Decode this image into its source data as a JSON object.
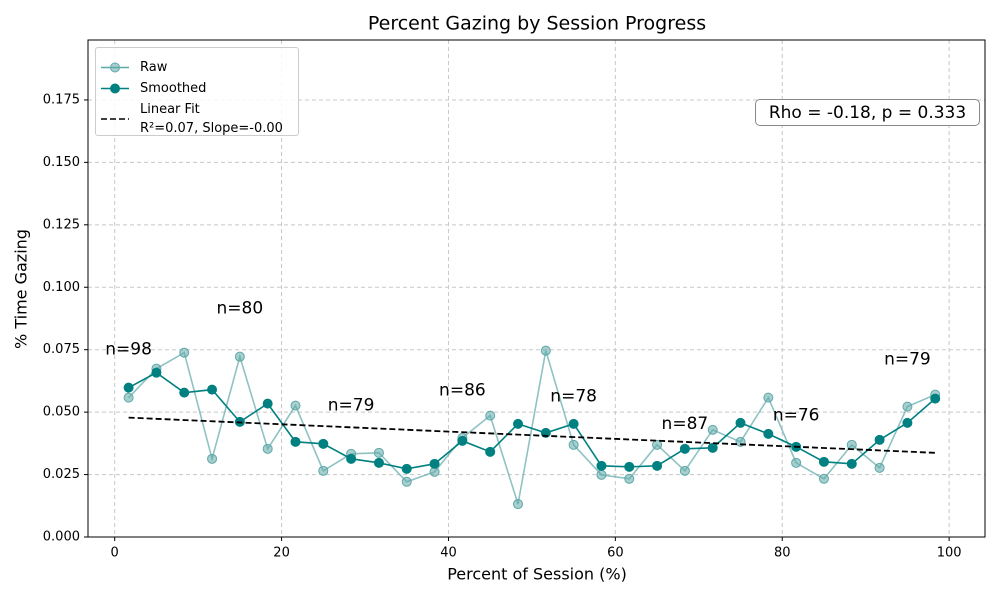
{
  "chart_data": {
    "type": "line",
    "title": "Percent Gazing by Session Progress",
    "xlabel": "Percent of Session (%)",
    "ylabel": "% Time Gazing",
    "x": [
      1.667,
      5,
      8.333,
      11.667,
      15,
      18.333,
      21.667,
      25,
      28.333,
      31.667,
      35,
      38.333,
      41.667,
      45,
      48.333,
      51.667,
      55,
      58.333,
      61.667,
      65,
      68.333,
      71.667,
      75,
      78.333,
      81.667,
      85,
      88.333,
      91.667,
      95,
      98.333
    ],
    "series": [
      {
        "name": "Raw",
        "color": "#5fa8a8",
        "marker": true,
        "values": [
          0.0558,
          0.0674,
          0.0738,
          0.0313,
          0.0722,
          0.0353,
          0.0526,
          0.0265,
          0.0333,
          0.0337,
          0.0221,
          0.0261,
          0.0397,
          0.0486,
          0.0132,
          0.0746,
          0.0369,
          0.0249,
          0.0233,
          0.0369,
          0.0265,
          0.0429,
          0.0381,
          0.0558,
          0.0297,
          0.0233,
          0.0369,
          0.0277,
          0.0522,
          0.057
        ]
      },
      {
        "name": "Smoothed",
        "color": "#008080",
        "marker": true,
        "values": [
          0.0598,
          0.0658,
          0.0578,
          0.059,
          0.0461,
          0.0534,
          0.0381,
          0.0373,
          0.0313,
          0.0297,
          0.0273,
          0.0293,
          0.0385,
          0.0341,
          0.0453,
          0.0417,
          0.0453,
          0.0285,
          0.0281,
          0.0285,
          0.0353,
          0.0357,
          0.0457,
          0.0413,
          0.0361,
          0.0301,
          0.0293,
          0.0389,
          0.0457,
          0.0554
        ]
      },
      {
        "name": "Linear Fit\nR²=0.07, Slope=-0.00",
        "color": "#000000",
        "dashed": true,
        "x": [
          1.667,
          98.333
        ],
        "values": [
          0.0478,
          0.0337
        ]
      }
    ],
    "annotations": [
      {
        "text": "n=98",
        "x": 1.667,
        "y": 0.075
      },
      {
        "text": "n=80",
        "x": 15,
        "y": 0.0915
      },
      {
        "text": "n=79",
        "x": 28.333,
        "y": 0.0526
      },
      {
        "text": "n=86",
        "x": 41.667,
        "y": 0.0586
      },
      {
        "text": "n=78",
        "x": 55,
        "y": 0.0562
      },
      {
        "text": "n=87",
        "x": 68.333,
        "y": 0.0453
      },
      {
        "text": "n=76",
        "x": 81.667,
        "y": 0.0486
      },
      {
        "text": "n=79",
        "x": 95,
        "y": 0.071
      }
    ],
    "stat_text": "Rho = -0.18, p = 0.333",
    "xlim": [
      -3.2,
      104.3
    ],
    "ylim": [
      0,
      0.199
    ],
    "xticks": [
      0,
      20,
      40,
      60,
      80,
      100
    ],
    "yticks": [
      {
        "value": 0,
        "label": "0.000"
      },
      {
        "value": 0.025,
        "label": "0.025"
      },
      {
        "value": 0.05,
        "label": "0.050"
      },
      {
        "value": 0.075,
        "label": "0.075"
      },
      {
        "value": 0.1,
        "label": "0.100"
      },
      {
        "value": 0.125,
        "label": "0.125"
      },
      {
        "value": 0.15,
        "label": "0.150"
      },
      {
        "value": 0.175,
        "label": "0.175"
      }
    ],
    "grid": true,
    "legend": "upper left"
  }
}
